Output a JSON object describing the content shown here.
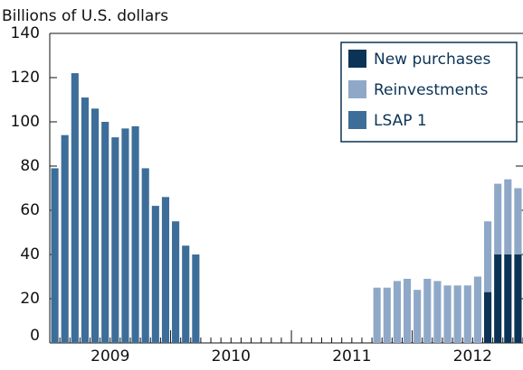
{
  "chart_data": {
    "type": "bar",
    "stacked": true,
    "y_label": "Billions of U.S. dollars",
    "categories": [
      null,
      null,
      null,
      null,
      null,
      null,
      "2009",
      null,
      null,
      null,
      null,
      null,
      null,
      null,
      null,
      null,
      null,
      null,
      "2010",
      null,
      null,
      null,
      null,
      null,
      null,
      null,
      null,
      null,
      null,
      null,
      "2011",
      null,
      null,
      null,
      null,
      null,
      null,
      null,
      null,
      null,
      null,
      null,
      "2012",
      null,
      null,
      null,
      null
    ],
    "series": [
      {
        "name": "New purchases",
        "color": "#0b3356",
        "values": [
          null,
          null,
          null,
          null,
          null,
          null,
          null,
          null,
          null,
          null,
          null,
          null,
          null,
          null,
          null,
          null,
          null,
          null,
          null,
          null,
          null,
          null,
          null,
          null,
          null,
          null,
          null,
          null,
          null,
          null,
          null,
          null,
          null,
          null,
          null,
          null,
          null,
          null,
          null,
          null,
          null,
          null,
          null,
          23,
          40,
          40,
          40
        ]
      },
      {
        "name": "Reinvestments",
        "color": "#8fa8c8",
        "values": [
          null,
          null,
          null,
          null,
          null,
          null,
          null,
          null,
          null,
          null,
          null,
          null,
          null,
          null,
          null,
          null,
          null,
          null,
          null,
          null,
          null,
          null,
          null,
          null,
          null,
          null,
          null,
          null,
          null,
          null,
          null,
          null,
          25,
          25,
          28,
          29,
          24,
          29,
          28,
          26,
          26,
          26,
          30,
          32,
          32,
          34,
          30
        ]
      },
      {
        "name": "LSAP 1",
        "color": "#3d6e99",
        "values": [
          79,
          94,
          122,
          111,
          106,
          100,
          93,
          97,
          98,
          79,
          62,
          66,
          55,
          44,
          40,
          null,
          null,
          null,
          null,
          null,
          null,
          null,
          null,
          null,
          null,
          null,
          null,
          null,
          null,
          null,
          null,
          null,
          null,
          null,
          null,
          null,
          null,
          null,
          null,
          null,
          null,
          null,
          null,
          null,
          null,
          null,
          null
        ]
      }
    ],
    "ylim": [
      0,
      140
    ],
    "yticks": [
      0,
      20,
      40,
      60,
      80,
      100,
      120,
      140
    ],
    "legend": "top-right"
  }
}
